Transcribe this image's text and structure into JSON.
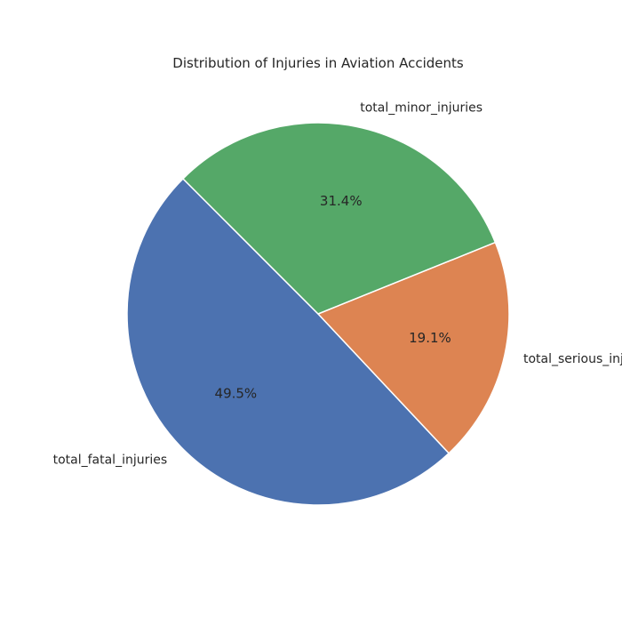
{
  "chart_data": {
    "type": "pie",
    "title": "Distribution of Injuries in Aviation Accidents",
    "categories": [
      "total_fatal_injuries",
      "total_serious_injuries",
      "total_minor_injuries"
    ],
    "values": [
      49.5,
      19.1,
      31.4
    ],
    "percent_labels": [
      "49.5%",
      "19.1%",
      "31.4%"
    ],
    "colors": [
      "#4c72b0",
      "#dd8452",
      "#55a868"
    ],
    "start_angle_deg": 135,
    "direction": "counterclockwise",
    "legend": "none"
  }
}
